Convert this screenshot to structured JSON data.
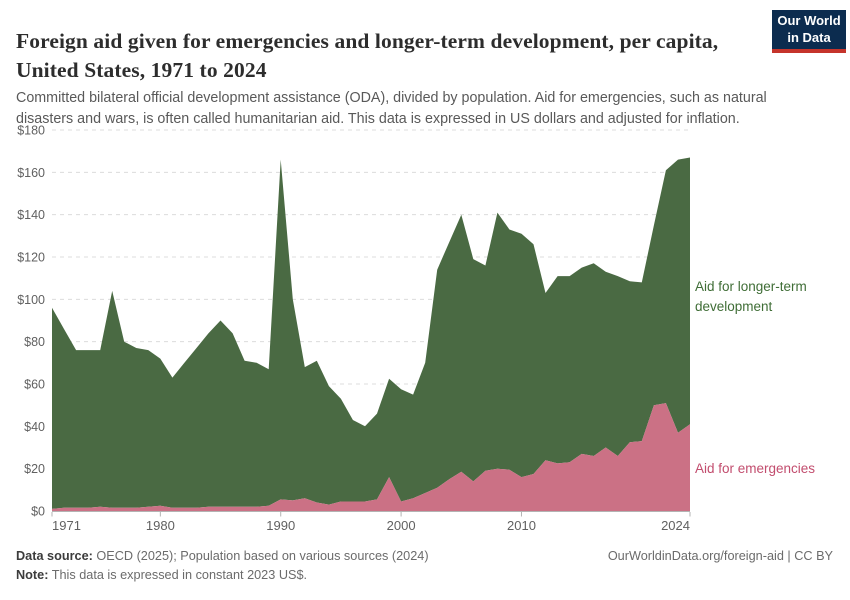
{
  "header": {
    "title": "Foreign aid given for emergencies and longer-term development, per capita, United States, 1971 to 2024",
    "subtitle": "Committed bilateral official development assistance (ODA), divided by population. Aid for emergencies, such as natural disasters and wars, is often called humanitarian aid. This data is expressed in US dollars and adjusted for inflation.",
    "logo": {
      "line1": "Our World",
      "line2": "in Data",
      "bg_color": "#0c2c4f",
      "accent_color": "#c5342b"
    }
  },
  "chart_data": {
    "type": "area",
    "stacked": true,
    "title": "Foreign aid given for emergencies and longer-term development, per capita, United States, 1971 to 2024",
    "xlabel": "",
    "ylabel": "",
    "ylim": [
      0,
      180
    ],
    "grid": "dashed",
    "legend_position": "right-inline",
    "years": [
      1971,
      1972,
      1973,
      1974,
      1975,
      1976,
      1977,
      1978,
      1979,
      1980,
      1981,
      1982,
      1983,
      1984,
      1985,
      1986,
      1987,
      1988,
      1989,
      1990,
      1991,
      1992,
      1993,
      1994,
      1995,
      1996,
      1997,
      1998,
      1999,
      2000,
      2001,
      2002,
      2003,
      2004,
      2005,
      2006,
      2007,
      2008,
      2009,
      2010,
      2011,
      2012,
      2013,
      2014,
      2015,
      2016,
      2017,
      2018,
      2019,
      2020,
      2021,
      2022,
      2023,
      2024
    ],
    "series": [
      {
        "name": "Aid for emergencies",
        "color": "#cb7185",
        "label_color": "#c24d6e",
        "values": [
          1,
          1.5,
          1.5,
          1.5,
          2,
          1.5,
          1.5,
          1.5,
          2,
          2.5,
          1.5,
          1.5,
          1.5,
          2,
          2,
          2,
          2,
          2,
          2.5,
          5.5,
          5,
          6,
          4,
          3,
          4.5,
          4.5,
          4.5,
          5.5,
          16,
          4.5,
          6,
          8.5,
          11,
          15,
          18.5,
          14,
          19,
          20,
          19.5,
          16,
          17.5,
          24,
          22.5,
          23,
          27,
          26,
          30,
          26,
          32.5,
          33,
          50,
          51,
          37,
          41
        ]
      },
      {
        "name": "Aid for longer-term development",
        "color": "#4a6a43",
        "label_color": "#3f6d36",
        "values": [
          95,
          84.5,
          74.5,
          74.5,
          74,
          102.5,
          78.5,
          75.5,
          74,
          69.5,
          61.5,
          68.5,
          75.5,
          82,
          88,
          82,
          69,
          68,
          64.5,
          160.5,
          95,
          62,
          67,
          56,
          48.5,
          38.5,
          35.5,
          40.5,
          46.5,
          53,
          49,
          61.5,
          103,
          112,
          121.5,
          105,
          97,
          121,
          113.5,
          115,
          108.5,
          79,
          88.5,
          88,
          88,
          91,
          83,
          85,
          76,
          75,
          85,
          110,
          129,
          126
        ]
      }
    ],
    "y_ticks": {
      "values": [
        0,
        20,
        40,
        60,
        80,
        100,
        120,
        140,
        160,
        180
      ],
      "labels": [
        "$0",
        "$20",
        "$40",
        "$60",
        "$80",
        "$100",
        "$120",
        "$140",
        "$160",
        "$180"
      ]
    },
    "x_ticks": [
      1971,
      1980,
      1990,
      2000,
      2010,
      2024
    ],
    "axis_color": "#b3b3b3",
    "grid_color": "#dcdcdc",
    "tick_text_color": "#616161"
  },
  "footer": {
    "source_label": "Data source:",
    "source_text": " OECD (2025); Population based on various sources (2024)",
    "link_text": "OurWorldinData.org/foreign-aid | CC BY",
    "note_label": "Note:",
    "note_text": " This data is expressed in constant 2023 US$."
  }
}
